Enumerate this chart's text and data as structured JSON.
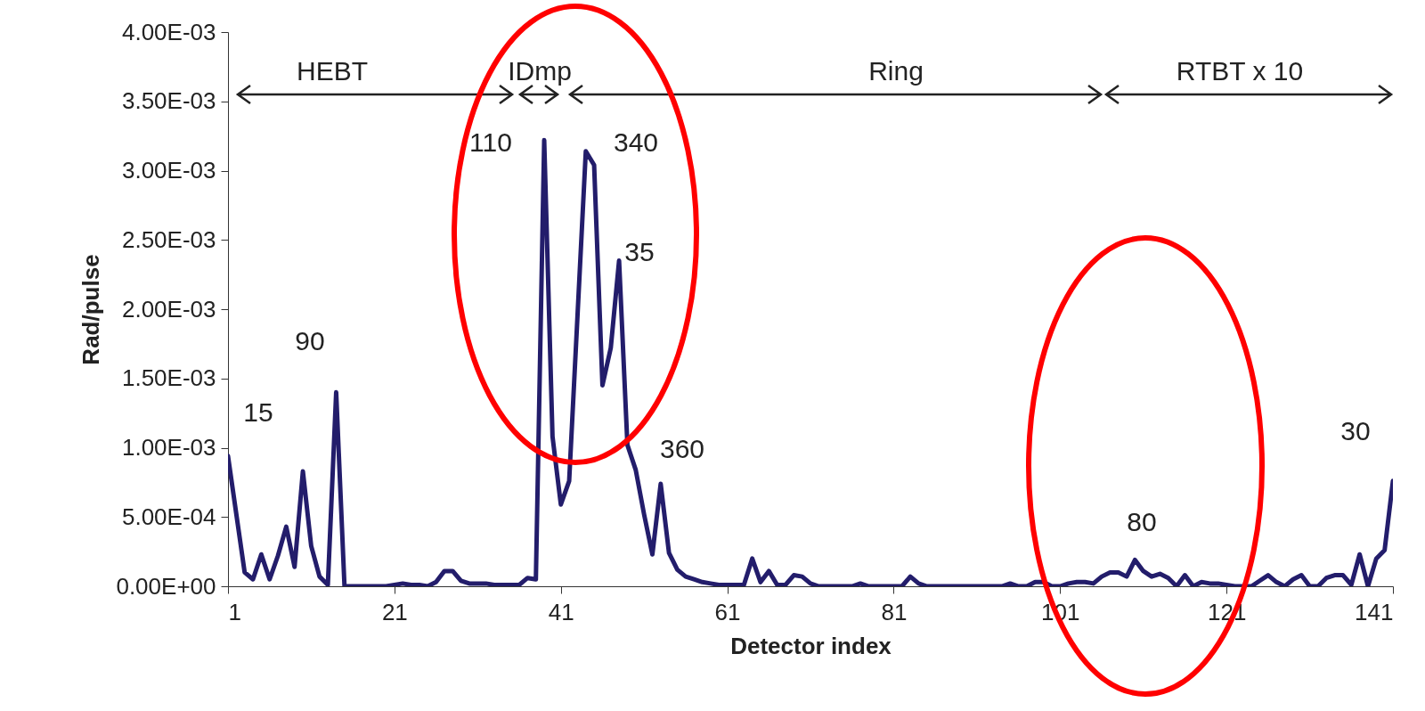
{
  "chart_data": {
    "type": "line",
    "xlabel": "Detector index",
    "ylabel": "Rad/pulse",
    "x": [
      1,
      2,
      3,
      4,
      5,
      6,
      7,
      8,
      9,
      10,
      11,
      12,
      13,
      14,
      15,
      16,
      17,
      18,
      19,
      20,
      21,
      22,
      23,
      24,
      25,
      26,
      27,
      28,
      29,
      30,
      31,
      32,
      33,
      34,
      35,
      36,
      37,
      38,
      39,
      40,
      41,
      42,
      43,
      44,
      45,
      46,
      47,
      48,
      49,
      50,
      51,
      52,
      53,
      54,
      55,
      56,
      57,
      58,
      59,
      60,
      61,
      62,
      63,
      64,
      65,
      66,
      67,
      68,
      69,
      70,
      71,
      72,
      73,
      74,
      75,
      76,
      77,
      78,
      79,
      80,
      81,
      82,
      83,
      84,
      85,
      86,
      87,
      88,
      89,
      90,
      91,
      92,
      93,
      94,
      95,
      96,
      97,
      98,
      99,
      100,
      101,
      102,
      103,
      104,
      105,
      106,
      107,
      108,
      109,
      110,
      111,
      112,
      113,
      114,
      115,
      116,
      117,
      118,
      119,
      120,
      121,
      122,
      123,
      124,
      125,
      126,
      127,
      128,
      129,
      130,
      131,
      132,
      133,
      134,
      135,
      136,
      137,
      138,
      139,
      140,
      141
    ],
    "series": [
      {
        "color": "#231d6b",
        "values": [
          0.00094,
          0.00052,
          0.0001,
          5e-05,
          0.00023,
          5e-05,
          0.00022,
          0.00043,
          0.00014,
          0.00083,
          0.00029,
          7e-05,
          1e-05,
          0.0014,
          0,
          0,
          0,
          0,
          0,
          0,
          1e-05,
          2e-05,
          1e-05,
          1e-05,
          0,
          3e-05,
          0.00011,
          0.00011,
          4e-05,
          2e-05,
          2e-05,
          2e-05,
          1e-05,
          1e-05,
          1e-05,
          1e-05,
          6e-05,
          5e-05,
          0.00322,
          0.00108,
          0.00059,
          0.00076,
          0.00195,
          0.00314,
          0.00304,
          0.00145,
          0.00172,
          0.00235,
          0.00102,
          0.00084,
          0.00052,
          0.00023,
          0.00074,
          0.00024,
          0.00012,
          7e-05,
          5e-05,
          3e-05,
          2e-05,
          1e-05,
          1e-05,
          1e-05,
          1e-05,
          0.0002,
          3e-05,
          0.00011,
          1e-05,
          1e-05,
          8e-05,
          7e-05,
          2e-05,
          0,
          0,
          0,
          0,
          0,
          2e-05,
          0,
          0,
          0,
          0,
          0,
          7e-05,
          2e-05,
          0,
          0,
          0,
          0,
          0,
          0,
          0,
          0,
          0,
          0,
          2e-05,
          0,
          0,
          3e-05,
          3e-05,
          0,
          0,
          2e-05,
          3e-05,
          3e-05,
          2e-05,
          7e-05,
          0.0001,
          0.0001,
          7e-05,
          0.00019,
          0.00011,
          7e-05,
          9e-05,
          6e-05,
          0,
          8e-05,
          0,
          3e-05,
          2e-05,
          2e-05,
          1e-05,
          0,
          0,
          0,
          4e-05,
          8e-05,
          3e-05,
          0,
          5e-05,
          8e-05,
          0,
          0,
          6e-05,
          8e-05,
          8e-05,
          1e-05,
          0.00023,
          0,
          0.0002,
          0.00026,
          0.00076
        ]
      }
    ],
    "xlim": [
      1,
      141
    ],
    "xticks": [
      1,
      21,
      41,
      61,
      81,
      101,
      121,
      141
    ],
    "ylim": [
      0,
      0.004
    ],
    "yticks": [
      {
        "value": 0,
        "label": "0.00E+00"
      },
      {
        "value": 0.0005,
        "label": "5.00E-04"
      },
      {
        "value": 0.001,
        "label": "1.00E-03"
      },
      {
        "value": 0.0015,
        "label": "1.50E-03"
      },
      {
        "value": 0.002,
        "label": "2.00E-03"
      },
      {
        "value": 0.0025,
        "label": "2.50E-03"
      },
      {
        "value": 0.003,
        "label": "3.00E-03"
      },
      {
        "value": 0.0035,
        "label": "3.50E-03"
      },
      {
        "value": 0.004,
        "label": "4.00E-03"
      }
    ],
    "grid": false,
    "annotations": [
      "HEBT",
      "IDmp",
      "Ring",
      "RTBT x 10",
      "110",
      "340",
      "35",
      "90",
      "15",
      "360",
      "30",
      "80"
    ]
  }
}
